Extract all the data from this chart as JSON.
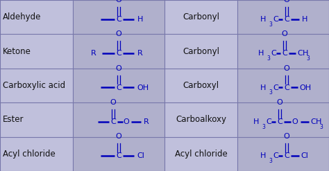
{
  "bg_light": "#c0c0dc",
  "bg_mid": "#b0b0cc",
  "text_black": "#111111",
  "text_blue": "#0000bb",
  "grid_color": "#7777aa",
  "names": [
    "Aldehyde",
    "Ketone",
    "Carboxylic acid",
    "Ester",
    "Acyl chloride"
  ],
  "groups": [
    "Carbonyl",
    "Carbonyl",
    "Carboxyl",
    "Carboalkoxy",
    "Acyl chloride"
  ],
  "figsize": [
    4.74,
    2.47
  ],
  "dpi": 100
}
